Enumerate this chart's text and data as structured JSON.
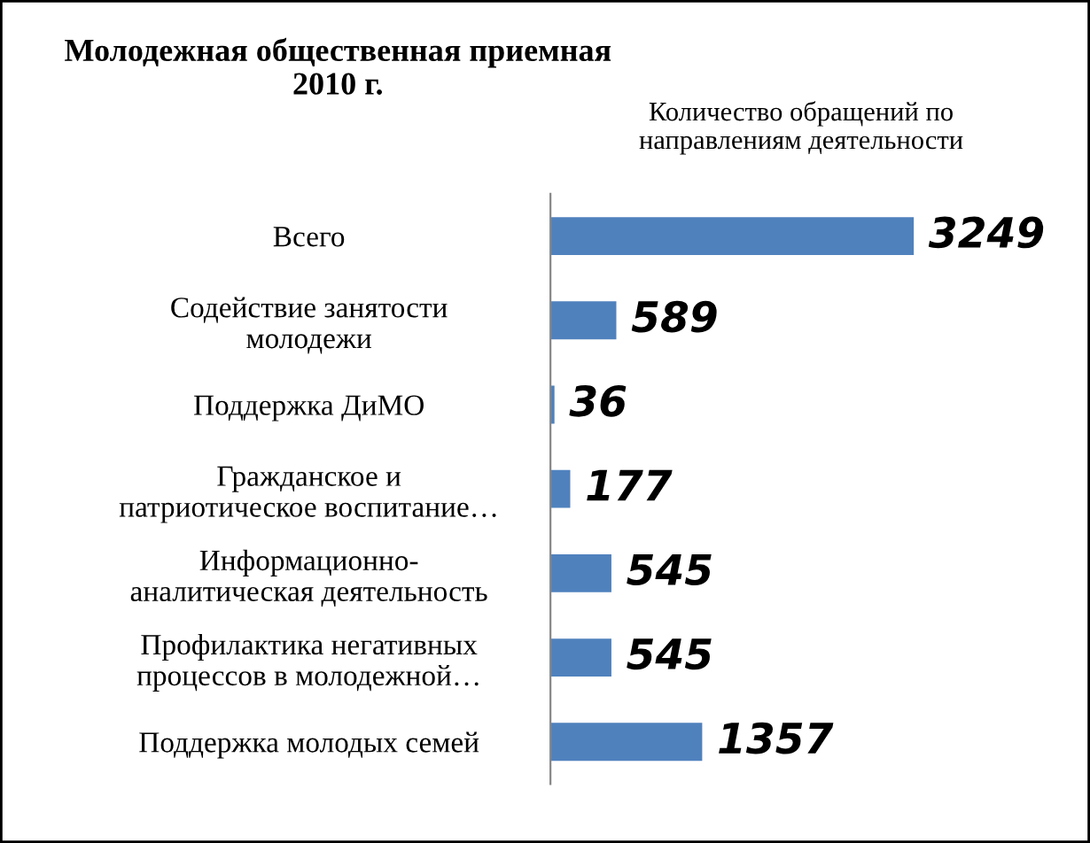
{
  "chart_data": {
    "type": "bar",
    "orientation": "horizontal",
    "title": "Молодежная общественная приемная\n2010 г.",
    "annotations": [
      "Количество обращений по\nнаправлениям деятельности"
    ],
    "categories": [
      "Всего",
      "Содействие занятости\nмолодежи",
      "Поддержка ДиМО",
      "Гражданское и\nпатриотическое воспитание…",
      "Информационно-\nаналитическая деятельность",
      "Профилактика негативных\nпроцессов в молодежной…",
      "Поддержка молодых семей"
    ],
    "values": [
      3249,
      589,
      36,
      177,
      545,
      545,
      1357
    ],
    "color": "#4f81bd",
    "data_labels": true,
    "grid": false,
    "legend": false
  }
}
